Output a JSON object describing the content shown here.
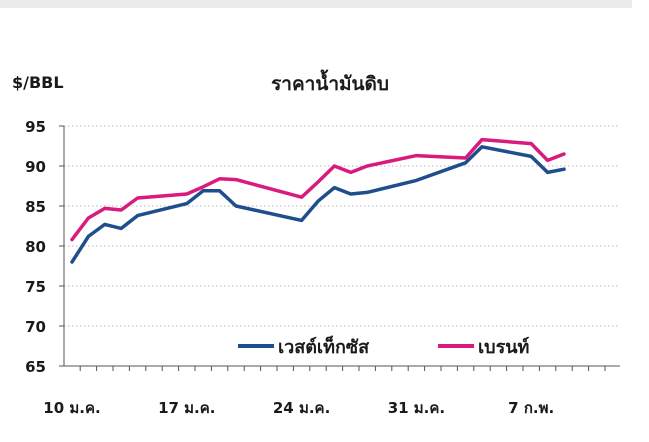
{
  "chart_data": {
    "type": "line",
    "title": "ราคาน้ำมันดิบ",
    "ylabel": "$/BBL",
    "xlabel": "",
    "ylim": [
      65,
      95
    ],
    "yticks": [
      65,
      70,
      75,
      80,
      85,
      90,
      95
    ],
    "grid": "horizontal-dotted",
    "legend": "bottom-right",
    "xtick_labels": [
      "10 ม.ค.",
      "17 ม.ค.",
      "24 ม.ค.",
      "31 ม.ค.",
      "7 ก.พ."
    ],
    "xtick_days": [
      0,
      7,
      14,
      21,
      28
    ],
    "x_days": [
      0,
      1,
      2,
      3,
      4,
      7,
      8,
      9,
      10,
      14,
      15,
      16,
      17,
      18,
      21,
      24,
      25,
      28,
      29,
      30
    ],
    "series": [
      {
        "name": "เวสต์เท็กซัส",
        "color": "#1f4e8c",
        "values": [
          78.0,
          81.2,
          82.7,
          82.2,
          83.8,
          85.3,
          86.9,
          86.9,
          85.0,
          83.2,
          85.6,
          87.3,
          86.5,
          86.7,
          88.2,
          90.4,
          92.4,
          91.2,
          89.2,
          89.6
        ]
      },
      {
        "name": "เบรนท์",
        "color": "#d81b7d",
        "values": [
          80.8,
          83.5,
          84.7,
          84.5,
          86.0,
          86.5,
          87.4,
          88.4,
          88.3,
          86.1,
          88.0,
          90.0,
          89.2,
          90.0,
          91.3,
          91.0,
          93.3,
          92.8,
          90.7,
          91.5
        ]
      }
    ]
  }
}
